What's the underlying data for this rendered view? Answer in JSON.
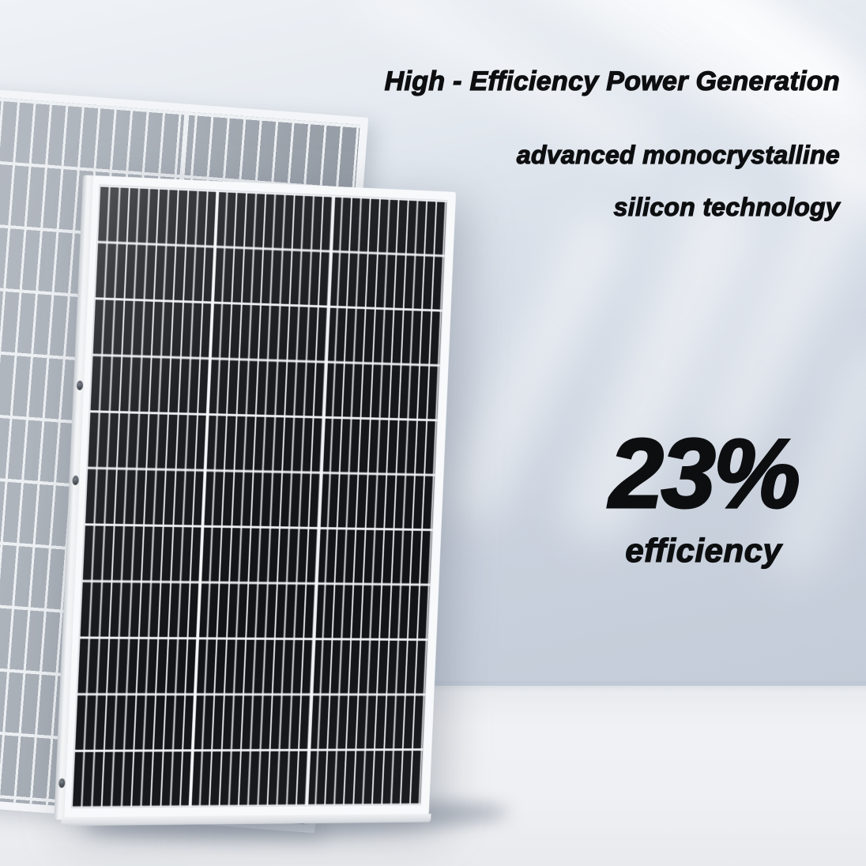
{
  "overlay": {
    "headline": "High - Efficiency Power Generation",
    "feature_line1": "advanced monocrystalline",
    "feature_line2": "silicon technology",
    "stat_value": "23%",
    "stat_label": "efficiency"
  },
  "graphics": {
    "front_panel": "black monocrystalline solar panel with white aluminum frame and mounting holes",
    "rear_panel": "gray solar panel standing behind the front panel"
  },
  "colors": {
    "text": "#0d0e10",
    "wall_light": "#eff2f6",
    "wall_shade": "#c3ccd8",
    "floor": "#eef0f3",
    "panel_cell": "#151619",
    "grid_line": "#f3f5f8",
    "frame": "#f7f9fb",
    "rear_panel_cell": "#a4abb3"
  }
}
